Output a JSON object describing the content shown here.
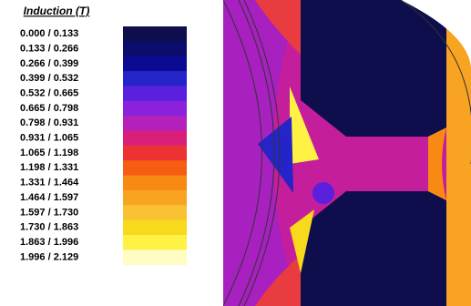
{
  "legend": {
    "title": "Induction (T)",
    "rows": [
      {
        "label": "0.000 / 0.133",
        "color": "#0e0e4c"
      },
      {
        "label": "0.133 / 0.266",
        "color": "#0c0c6c"
      },
      {
        "label": "0.266 / 0.399",
        "color": "#0a0a92"
      },
      {
        "label": "0.399 / 0.532",
        "color": "#2424c8"
      },
      {
        "label": "0.532 / 0.665",
        "color": "#5a20de"
      },
      {
        "label": "0.665 / 0.798",
        "color": "#8a22dc"
      },
      {
        "label": "0.798 / 0.931",
        "color": "#b420bc"
      },
      {
        "label": "0.931 / 1.065",
        "color": "#d8207a"
      },
      {
        "label": "1.065 / 1.198",
        "color": "#ec3232"
      },
      {
        "label": "1.198 / 1.331",
        "color": "#f65c12"
      },
      {
        "label": "1.331 / 1.464",
        "color": "#f88a14"
      },
      {
        "label": "1.464 / 1.597",
        "color": "#f8a422"
      },
      {
        "label": "1.597 / 1.730",
        "color": "#f8c232"
      },
      {
        "label": "1.730 / 1.863",
        "color": "#f8da1c"
      },
      {
        "label": "1.863 / 1.996",
        "color": "#fff244"
      },
      {
        "label": "1.996 / 2.129",
        "color": "#fffcc4"
      }
    ]
  }
}
